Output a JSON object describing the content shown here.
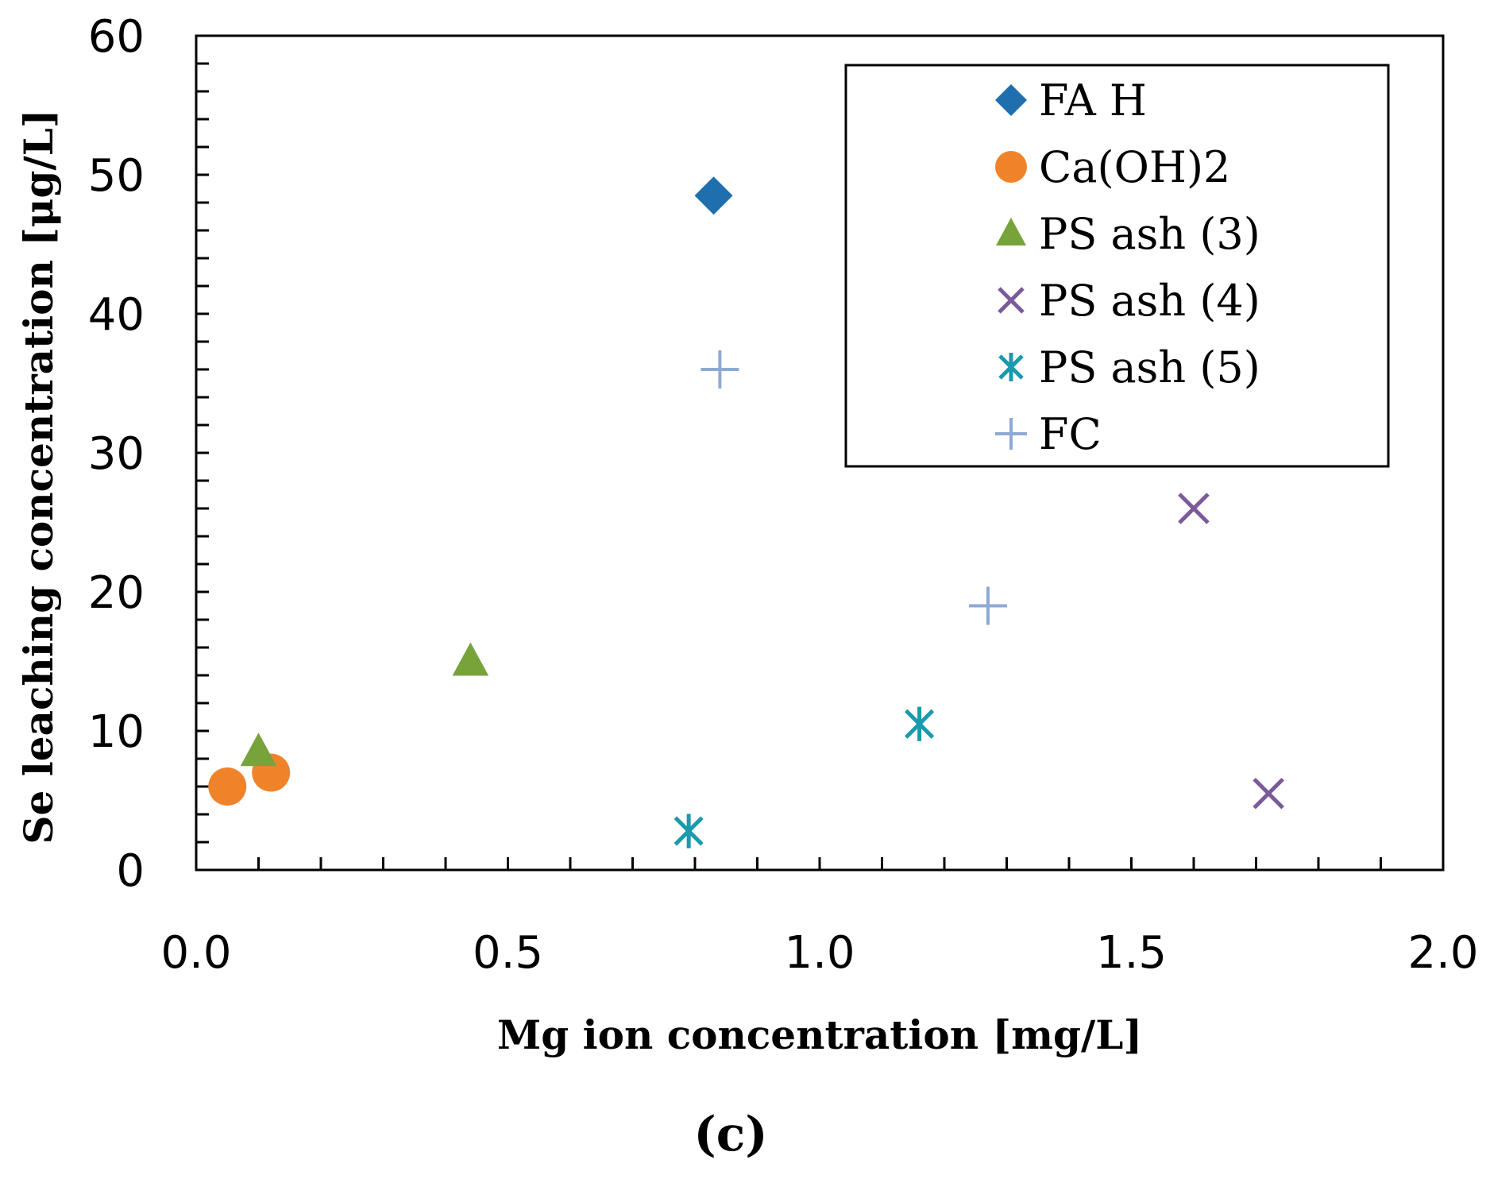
{
  "chart_data": {
    "type": "scatter",
    "xlabel": "Mg ion concentration  [mg/L]",
    "ylabel": "Se leaching concentration  [μg/L]",
    "xlim": [
      0,
      2.0
    ],
    "ylim": [
      0,
      60
    ],
    "x_ticks": [
      "0.0",
      "0.5",
      "1.0",
      "1.5",
      "2.0"
    ],
    "y_ticks": [
      "0",
      "10",
      "20",
      "30",
      "40",
      "50",
      "60"
    ],
    "x_minor_step": 0.1,
    "y_minor_step": 2,
    "grid": false,
    "legend_position": "top-right",
    "panel_label": "(c)",
    "series": [
      {
        "name": "FA H",
        "marker": "diamond",
        "color": "#1f6fae",
        "points": [
          {
            "x": 0.83,
            "y": 48.5
          }
        ]
      },
      {
        "name": "Ca(OH)2",
        "marker": "circle",
        "color": "#f0832a",
        "points": [
          {
            "x": 0.05,
            "y": 6.0
          },
          {
            "x": 0.12,
            "y": 7.0
          }
        ]
      },
      {
        "name": "PS ash (3)",
        "marker": "triangle",
        "color": "#76a33a",
        "points": [
          {
            "x": 0.1,
            "y": 8.5
          },
          {
            "x": 0.44,
            "y": 15.0
          }
        ]
      },
      {
        "name": "PS ash (4)",
        "marker": "x",
        "color": "#7b5a9a",
        "points": [
          {
            "x": 1.6,
            "y": 26.0
          },
          {
            "x": 1.72,
            "y": 5.5
          }
        ]
      },
      {
        "name": "PS ash (5)",
        "marker": "asterisk",
        "color": "#1a9aac",
        "points": [
          {
            "x": 0.79,
            "y": 2.8
          },
          {
            "x": 1.16,
            "y": 10.5
          }
        ]
      },
      {
        "name": "FC",
        "marker": "plus",
        "color": "#8ea9d4",
        "points": [
          {
            "x": 0.84,
            "y": 36.0
          },
          {
            "x": 1.27,
            "y": 19.0
          }
        ]
      }
    ]
  }
}
